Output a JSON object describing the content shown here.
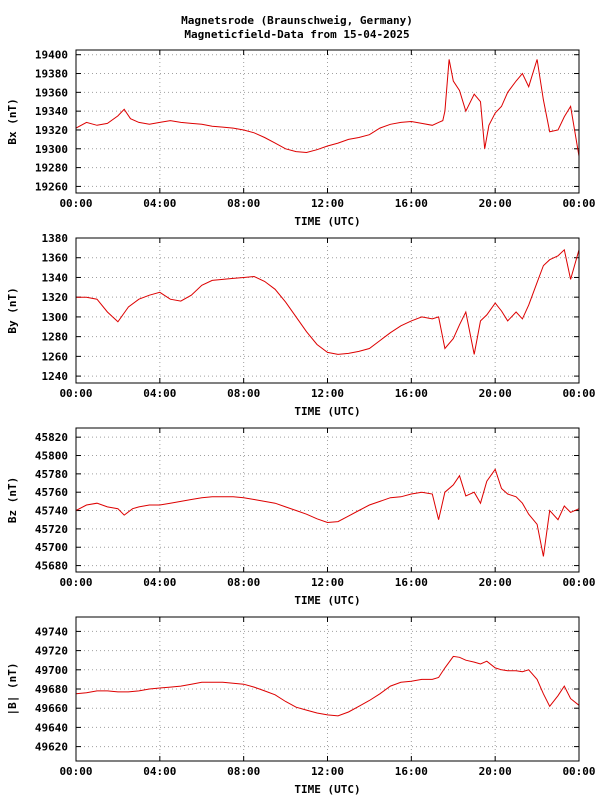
{
  "page": {
    "title_line1": "Magnetsrode (Braunschweig, Germany)",
    "title_line2": "Magneticfield-Data from 15-04-2025"
  },
  "colors": {
    "series": "#dd0000",
    "grid": "#a0a0a0",
    "frame": "#000000"
  },
  "chart_data": [
    {
      "type": "line",
      "ylabel": "Bx (nT)",
      "xlabel": "TIME (UTC)",
      "xlim": [
        0,
        24
      ],
      "x_ticks": [
        "00:00",
        "04:00",
        "08:00",
        "12:00",
        "16:00",
        "20:00",
        "00:00"
      ],
      "ylim": [
        19253,
        19405
      ],
      "y_ticks": [
        19260,
        19280,
        19300,
        19320,
        19340,
        19360,
        19380,
        19400
      ],
      "grid": true,
      "series": [
        {
          "x": [
            0,
            0.5,
            1,
            1.5,
            2,
            2.3,
            2.6,
            3,
            3.5,
            4,
            4.5,
            5,
            5.5,
            6,
            6.5,
            7,
            7.5,
            8,
            8.5,
            9,
            9.5,
            10,
            10.5,
            11,
            11.5,
            12,
            12.5,
            13,
            13.5,
            14,
            14.5,
            15,
            15.5,
            16,
            16.5,
            17,
            17.3,
            17.5,
            17.6,
            17.8,
            18,
            18.3,
            18.6,
            19,
            19.3,
            19.5,
            19.7,
            20,
            20.3,
            20.6,
            21,
            21.3,
            21.6,
            22,
            22.3,
            22.6,
            23,
            23.3,
            23.6,
            24
          ],
          "y": [
            19322,
            19328,
            19325,
            19327,
            19335,
            19342,
            19332,
            19328,
            19326,
            19328,
            19330,
            19328,
            19327,
            19326,
            19324,
            19323,
            19322,
            19320,
            19317,
            19312,
            19306,
            19300,
            19297,
            19296,
            19299,
            19303,
            19306,
            19310,
            19312,
            19315,
            19322,
            19326,
            19328,
            19329,
            19327,
            19325,
            19328,
            19330,
            19340,
            19395,
            19372,
            19362,
            19340,
            19358,
            19350,
            19300,
            19325,
            19338,
            19345,
            19360,
            19372,
            19380,
            19366,
            19395,
            19352,
            19318,
            19320,
            19334,
            19345,
            19292
          ]
        }
      ]
    },
    {
      "type": "line",
      "ylabel": "By (nT)",
      "xlabel": "TIME (UTC)",
      "xlim": [
        0,
        24
      ],
      "x_ticks": [
        "00:00",
        "04:00",
        "08:00",
        "12:00",
        "16:00",
        "20:00",
        "00:00"
      ],
      "ylim": [
        1233,
        1380
      ],
      "y_ticks": [
        1240,
        1260,
        1280,
        1300,
        1320,
        1340,
        1360,
        1380
      ],
      "grid": true,
      "series": [
        {
          "x": [
            0,
            0.5,
            1,
            1.5,
            2,
            2.5,
            3,
            3.5,
            4,
            4.5,
            5,
            5.5,
            6,
            6.5,
            7,
            7.5,
            8,
            8.5,
            9,
            9.5,
            10,
            10.5,
            11,
            11.5,
            12,
            12.5,
            13,
            13.5,
            14,
            14.5,
            15,
            15.5,
            16,
            16.5,
            17,
            17.3,
            17.6,
            18,
            18.3,
            18.6,
            19,
            19.3,
            19.6,
            20,
            20.3,
            20.6,
            21,
            21.3,
            21.6,
            22,
            22.3,
            22.6,
            23,
            23.3,
            23.6,
            24
          ],
          "y": [
            1320,
            1320,
            1318,
            1305,
            1295,
            1310,
            1318,
            1322,
            1325,
            1318,
            1316,
            1322,
            1332,
            1337,
            1338,
            1339,
            1340,
            1341,
            1336,
            1328,
            1315,
            1300,
            1285,
            1272,
            1264,
            1262,
            1263,
            1265,
            1268,
            1276,
            1284,
            1291,
            1296,
            1300,
            1298,
            1300,
            1268,
            1278,
            1292,
            1305,
            1262,
            1296,
            1302,
            1314,
            1306,
            1296,
            1305,
            1298,
            1312,
            1335,
            1352,
            1358,
            1362,
            1368,
            1338,
            1368
          ]
        }
      ]
    },
    {
      "type": "line",
      "ylabel": "Bz (nT)",
      "xlabel": "TIME (UTC)",
      "xlim": [
        0,
        24
      ],
      "x_ticks": [
        "00:00",
        "04:00",
        "08:00",
        "12:00",
        "16:00",
        "20:00",
        "00:00"
      ],
      "ylim": [
        45673,
        45830
      ],
      "y_ticks": [
        45680,
        45700,
        45720,
        45740,
        45760,
        45780,
        45800,
        45820
      ],
      "grid": true,
      "series": [
        {
          "x": [
            0,
            0.5,
            1,
            1.5,
            2,
            2.3,
            2.7,
            3,
            3.5,
            4,
            4.5,
            5,
            5.5,
            6,
            6.5,
            7,
            7.5,
            8,
            8.5,
            9,
            9.5,
            10,
            10.5,
            11,
            11.5,
            12,
            12.5,
            13,
            13.5,
            14,
            14.5,
            15,
            15.5,
            16,
            16.5,
            17,
            17.3,
            17.6,
            18,
            18.3,
            18.6,
            19,
            19.3,
            19.6,
            20,
            20.3,
            20.6,
            21,
            21.3,
            21.6,
            22,
            22.3,
            22.6,
            23,
            23.3,
            23.6,
            24
          ],
          "y": [
            45740,
            45746,
            45748,
            45744,
            45742,
            45735,
            45742,
            45744,
            45746,
            45746,
            45748,
            45750,
            45752,
            45754,
            45755,
            45755,
            45755,
            45754,
            45752,
            45750,
            45748,
            45744,
            45740,
            45736,
            45731,
            45727,
            45728,
            45734,
            45740,
            45746,
            45750,
            45754,
            45755,
            45758,
            45760,
            45758,
            45730,
            45760,
            45768,
            45778,
            45756,
            45760,
            45748,
            45772,
            45785,
            45764,
            45758,
            45755,
            45748,
            45736,
            45725,
            45690,
            45740,
            45730,
            45745,
            45738,
            45742
          ]
        }
      ]
    },
    {
      "type": "line",
      "ylabel": "|B| (nT)",
      "xlabel": "TIME (UTC)",
      "xlim": [
        0,
        24
      ],
      "x_ticks": [
        "00:00",
        "04:00",
        "08:00",
        "12:00",
        "16:00",
        "20:00",
        "00:00"
      ],
      "ylim": [
        49605,
        49755
      ],
      "y_ticks": [
        49620,
        49640,
        49660,
        49680,
        49700,
        49720,
        49740
      ],
      "grid": true,
      "series": [
        {
          "x": [
            0,
            0.5,
            1,
            1.5,
            2,
            2.5,
            3,
            3.5,
            4,
            4.5,
            5,
            5.5,
            6,
            6.5,
            7,
            7.5,
            8,
            8.5,
            9,
            9.5,
            10,
            10.5,
            11,
            11.5,
            12,
            12.5,
            13,
            13.5,
            14,
            14.5,
            15,
            15.5,
            16,
            16.5,
            17,
            17.3,
            17.6,
            18,
            18.3,
            18.6,
            19,
            19.3,
            19.6,
            20,
            20.3,
            20.6,
            21,
            21.3,
            21.6,
            22,
            22.3,
            22.6,
            23,
            23.3,
            23.6,
            24
          ],
          "y": [
            49675,
            49676,
            49678,
            49678,
            49677,
            49677,
            49678,
            49680,
            49681,
            49682,
            49683,
            49685,
            49687,
            49687,
            49687,
            49686,
            49685,
            49682,
            49678,
            49674,
            49667,
            49661,
            49658,
            49655,
            49653,
            49652,
            49656,
            49662,
            49668,
            49675,
            49683,
            49687,
            49688,
            49690,
            49690,
            49692,
            49702,
            49714,
            49713,
            49710,
            49708,
            49706,
            49709,
            49702,
            49700,
            49699,
            49699,
            49698,
            49700,
            49690,
            49675,
            49662,
            49673,
            49683,
            49670,
            49663
          ]
        }
      ]
    }
  ]
}
